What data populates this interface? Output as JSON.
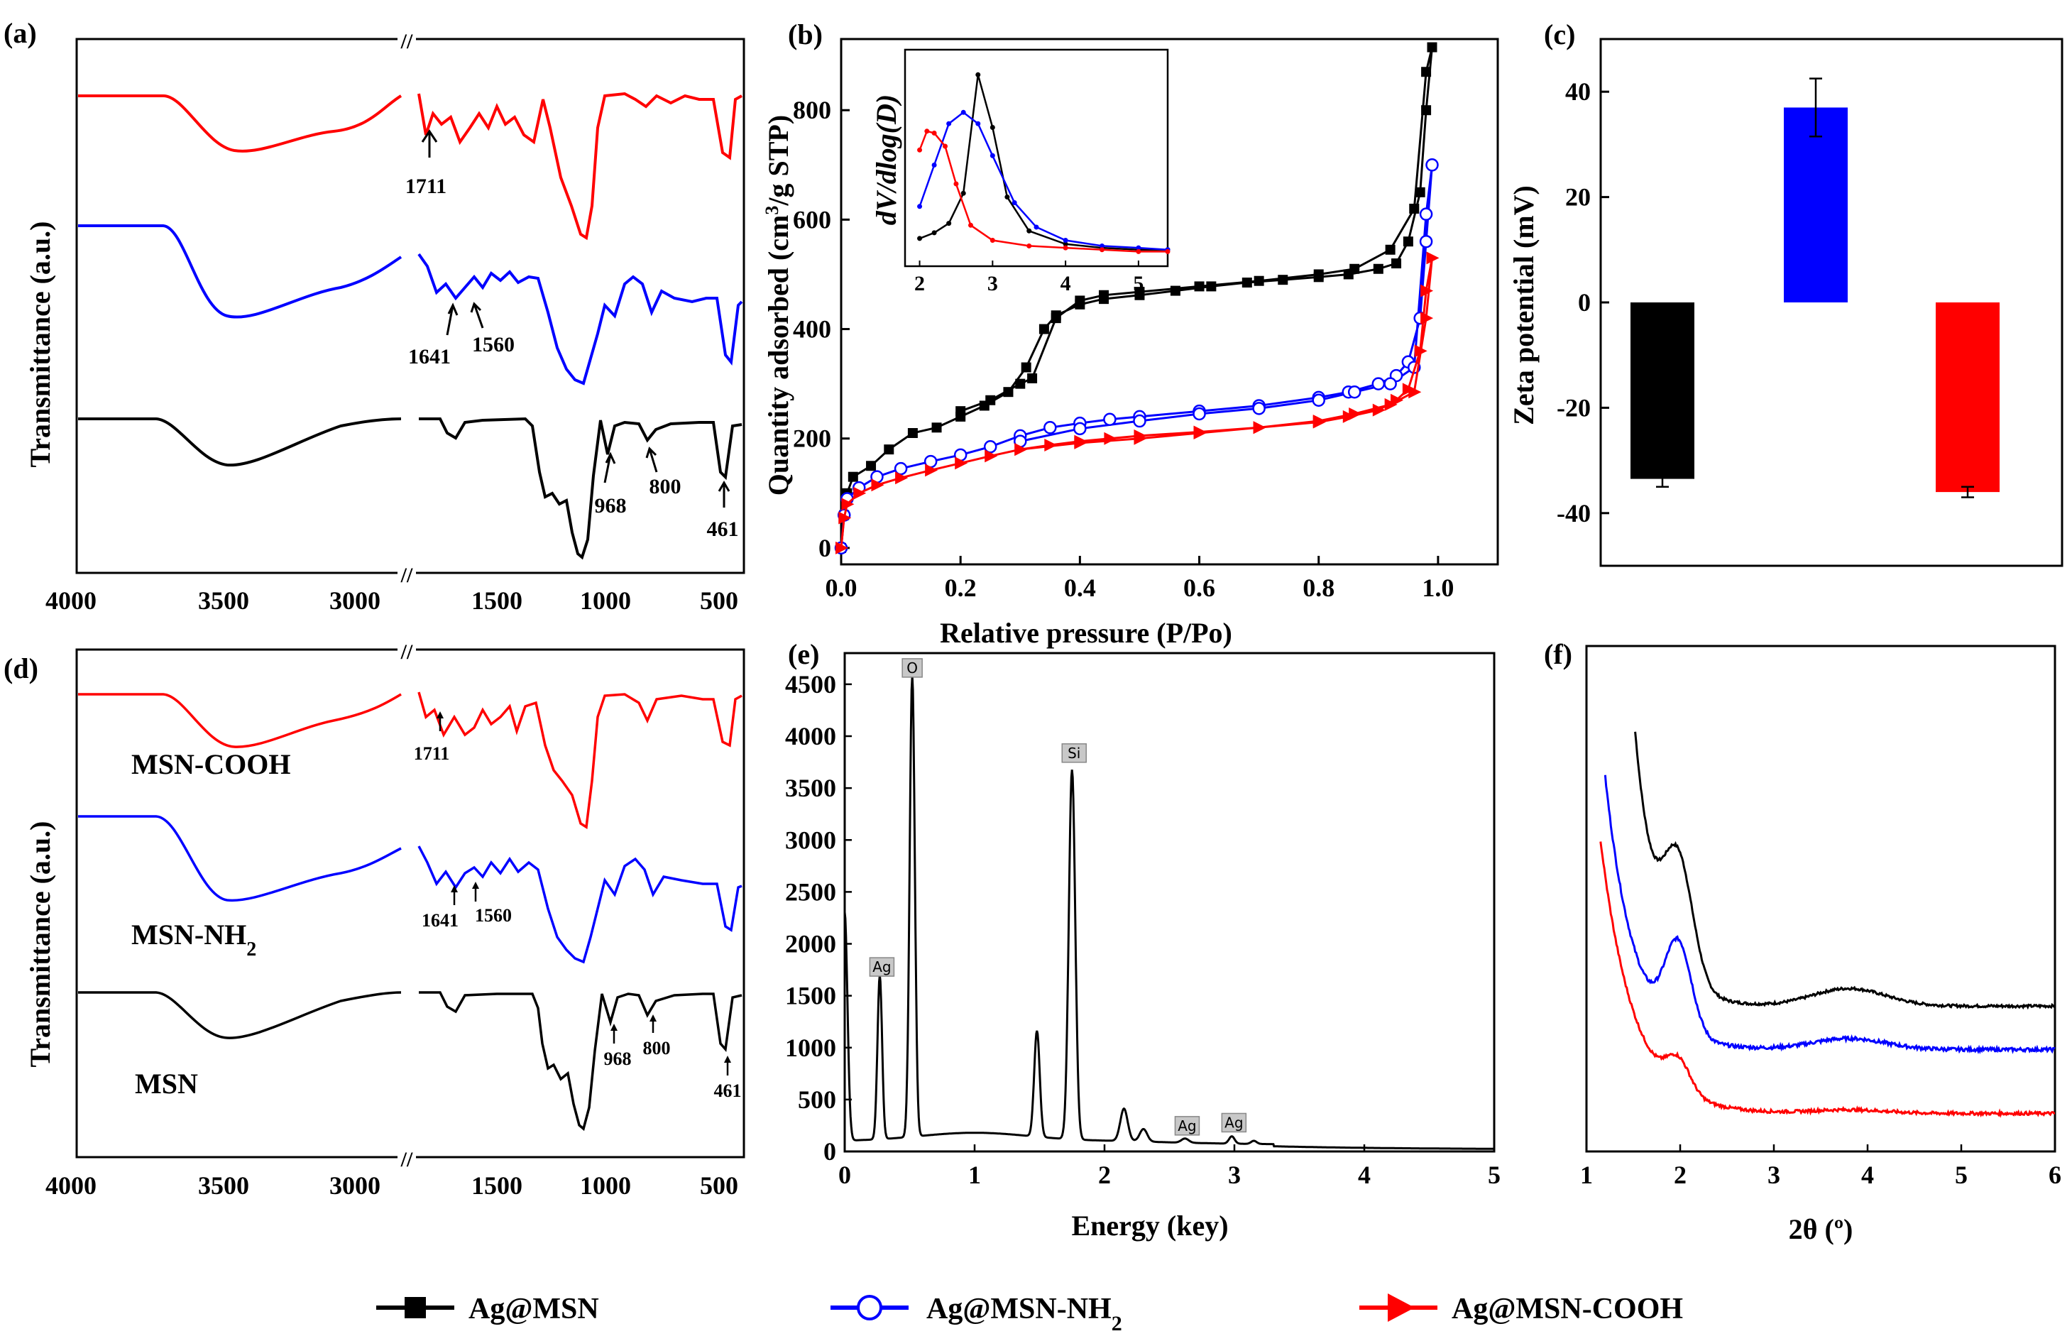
{
  "chart_data": [
    {
      "id": "a",
      "panel_label": "(a)",
      "type": "line",
      "ylabel": "Transmittance (a.u.)",
      "x_ticks": [
        "4000",
        "3500",
        "3000",
        "1500",
        "1000",
        "500"
      ],
      "axis_break_mark": "//",
      "annotations": [
        "1711",
        "1641",
        "1560",
        "968",
        "800",
        "461"
      ],
      "series": [
        {
          "name": "Ag@MSN-COOH",
          "color": "#ff0000"
        },
        {
          "name": "Ag@MSN-NH2",
          "color": "#0000ff"
        },
        {
          "name": "Ag@MSN",
          "color": "#000000"
        }
      ]
    },
    {
      "id": "b",
      "panel_label": "(b)",
      "type": "line",
      "xlabel": "Relative pressure (P/Po)",
      "ylabel_prefix": "Quantity adsorbed (cm",
      "ylabel_sup": "3",
      "ylabel_suffix": "/g STP)",
      "xlim": [
        0,
        1.1
      ],
      "ylim": [
        -30,
        930
      ],
      "x_ticks": [
        "0.0",
        "0.2",
        "0.4",
        "0.6",
        "0.8",
        "1.0"
      ],
      "y_ticks": [
        "0",
        "200",
        "400",
        "600",
        "800"
      ],
      "series": [
        {
          "name": "Ag@MSN",
          "color": "#000000",
          "marker": "square",
          "x": [
            0.0,
            0.005,
            0.01,
            0.02,
            0.05,
            0.08,
            0.12,
            0.16,
            0.2,
            0.24,
            0.28,
            0.31,
            0.34,
            0.36,
            0.4,
            0.44,
            0.5,
            0.56,
            0.62,
            0.68,
            0.74,
            0.8,
            0.85,
            0.9,
            0.93,
            0.95,
            0.97,
            0.98,
            0.99,
            0.98,
            0.96,
            0.92,
            0.86,
            0.8,
            0.7,
            0.6,
            0.5,
            0.44,
            0.4,
            0.36,
            0.32,
            0.3,
            0.25,
            0.2
          ],
          "y": [
            0,
            60,
            100,
            130,
            150,
            180,
            210,
            220,
            240,
            260,
            285,
            330,
            400,
            425,
            445,
            455,
            462,
            470,
            478,
            485,
            490,
            495,
            500,
            510,
            520,
            560,
            650,
            800,
            915,
            870,
            620,
            545,
            510,
            500,
            488,
            478,
            468,
            462,
            452,
            420,
            310,
            300,
            270,
            250
          ]
        },
        {
          "name": "Ag@MSN-NH2",
          "color": "#0000ff",
          "marker": "circle",
          "x": [
            0.0,
            0.005,
            0.01,
            0.03,
            0.06,
            0.1,
            0.15,
            0.2,
            0.25,
            0.3,
            0.35,
            0.4,
            0.45,
            0.5,
            0.6,
            0.7,
            0.8,
            0.85,
            0.9,
            0.93,
            0.95,
            0.97,
            0.98,
            0.99,
            0.98,
            0.96,
            0.92,
            0.86,
            0.8,
            0.7,
            0.6,
            0.5,
            0.4,
            0.3
          ],
          "y": [
            0,
            60,
            90,
            110,
            130,
            145,
            158,
            170,
            185,
            205,
            220,
            228,
            235,
            240,
            250,
            260,
            275,
            285,
            300,
            315,
            340,
            420,
            560,
            700,
            610,
            330,
            300,
            285,
            270,
            255,
            245,
            232,
            218,
            195
          ]
        },
        {
          "name": "Ag@MSN-COOH",
          "color": "#ff0000",
          "marker": "triangle",
          "x": [
            0.0,
            0.005,
            0.01,
            0.03,
            0.06,
            0.1,
            0.15,
            0.2,
            0.25,
            0.3,
            0.35,
            0.4,
            0.45,
            0.5,
            0.6,
            0.7,
            0.8,
            0.85,
            0.9,
            0.93,
            0.95,
            0.97,
            0.98,
            0.99,
            0.98,
            0.96,
            0.92,
            0.86,
            0.8,
            0.7,
            0.6,
            0.5,
            0.4,
            0.3
          ],
          "y": [
            0,
            55,
            80,
            100,
            115,
            128,
            142,
            155,
            168,
            180,
            188,
            195,
            200,
            205,
            212,
            220,
            230,
            240,
            252,
            270,
            290,
            360,
            470,
            530,
            420,
            285,
            262,
            245,
            232,
            220,
            210,
            200,
            192,
            180
          ]
        }
      ],
      "inset": {
        "ylabel": "dV/dlog(D)",
        "xlim": [
          1.8,
          5.4
        ],
        "ylim": [
          0,
          1
        ],
        "x_ticks": [
          "2",
          "3",
          "4",
          "5"
        ],
        "series": [
          {
            "name": "Ag@MSN",
            "color": "#000000",
            "x": [
              2.0,
              2.2,
              2.4,
              2.6,
              2.8,
              3.0,
              3.2,
              3.5,
              4.0,
              4.5,
              5.0,
              5.4
            ],
            "y": [
              0.11,
              0.14,
              0.19,
              0.35,
              0.98,
              0.7,
              0.33,
              0.15,
              0.08,
              0.06,
              0.05,
              0.05
            ]
          },
          {
            "name": "Ag@MSN-NH2",
            "color": "#0000ff",
            "x": [
              2.0,
              2.2,
              2.4,
              2.6,
              2.8,
              3.0,
              3.3,
              3.6,
              4.0,
              4.5,
              5.0,
              5.4
            ],
            "y": [
              0.28,
              0.5,
              0.72,
              0.78,
              0.72,
              0.55,
              0.3,
              0.17,
              0.1,
              0.07,
              0.06,
              0.05
            ]
          },
          {
            "name": "Ag@MSN-COOH",
            "color": "#ff0000",
            "x": [
              2.0,
              2.1,
              2.2,
              2.35,
              2.5,
              2.7,
              3.0,
              3.5,
              4.0,
              4.5,
              5.0,
              5.4
            ],
            "y": [
              0.58,
              0.68,
              0.67,
              0.6,
              0.4,
              0.18,
              0.1,
              0.07,
              0.06,
              0.05,
              0.04,
              0.04
            ]
          }
        ]
      }
    },
    {
      "id": "c",
      "panel_label": "(c)",
      "type": "bar",
      "ylabel": "Zeta potential (mV)",
      "ylim": [
        -50,
        50
      ],
      "y_ticks": [
        "40",
        "20",
        "0",
        "-20",
        "-40"
      ],
      "categories": [
        "Ag@MSN",
        "Ag@MSN-NH2",
        "Ag@MSN-COOH"
      ],
      "values": [
        -33.5,
        37,
        -36
      ],
      "errors": [
        1.5,
        5.5,
        1.0
      ],
      "colors": [
        "#000000",
        "#0000ff",
        "#ff0000"
      ]
    },
    {
      "id": "d",
      "panel_label": "(d)",
      "type": "line",
      "ylabel": "Transmittance (a.u.)",
      "x_ticks": [
        "4000",
        "3500",
        "3000",
        "1500",
        "1000",
        "500"
      ],
      "axis_break_mark": "//",
      "annotations": [
        "1711",
        "1641",
        "1560",
        "968",
        "800",
        "461"
      ],
      "series_labels": {
        "cooh": "MSN-COOH",
        "nh2_base": "MSN-NH",
        "nh2_sub": "2",
        "msn": "MSN"
      },
      "series": [
        {
          "name": "MSN-COOH",
          "color": "#ff0000"
        },
        {
          "name": "MSN-NH2",
          "color": "#0000ff"
        },
        {
          "name": "MSN",
          "color": "#000000"
        }
      ]
    },
    {
      "id": "e",
      "panel_label": "(e)",
      "type": "line",
      "xlabel": "Energy (key)",
      "xlim": [
        0,
        5
      ],
      "ylim": [
        0,
        4800
      ],
      "x_ticks": [
        "0",
        "1",
        "2",
        "3",
        "4",
        "5"
      ],
      "y_ticks": [
        "0",
        "500",
        "1000",
        "1500",
        "2000",
        "2500",
        "3000",
        "3500",
        "4000",
        "4500"
      ],
      "peaks": [
        {
          "label": "Ag",
          "x": 0.27,
          "y": 1620
        },
        {
          "label": "O",
          "x": 0.52,
          "y": 4500
        },
        {
          "label": "Si",
          "x": 1.75,
          "y": 3680
        },
        {
          "label": "Ag",
          "x": 2.62,
          "y": 90
        },
        {
          "label": "Ag",
          "x": 2.98,
          "y": 120
        }
      ]
    },
    {
      "id": "f",
      "panel_label": "(f)",
      "type": "line",
      "xlabel": "2θ (º)",
      "xlim": [
        1,
        6
      ],
      "x_ticks": [
        "1",
        "2",
        "3",
        "4",
        "5",
        "6"
      ],
      "series": [
        {
          "name": "Ag@MSN",
          "color": "#000000"
        },
        {
          "name": "Ag@MSN-NH2",
          "color": "#0000ff"
        },
        {
          "name": "Ag@MSN-COOH",
          "color": "#ff0000"
        }
      ]
    }
  ],
  "legend": [
    {
      "name": "Ag@MSN",
      "label": "Ag@MSN",
      "color": "#000000",
      "marker": "square"
    },
    {
      "name": "Ag@MSN-NH2",
      "label": "Ag@MSN-NH",
      "sub": "2",
      "color": "#0000ff",
      "marker": "circle"
    },
    {
      "name": "Ag@MSN-COOH",
      "label": "Ag@MSN-COOH",
      "color": "#ff0000",
      "marker": "triangle"
    }
  ]
}
